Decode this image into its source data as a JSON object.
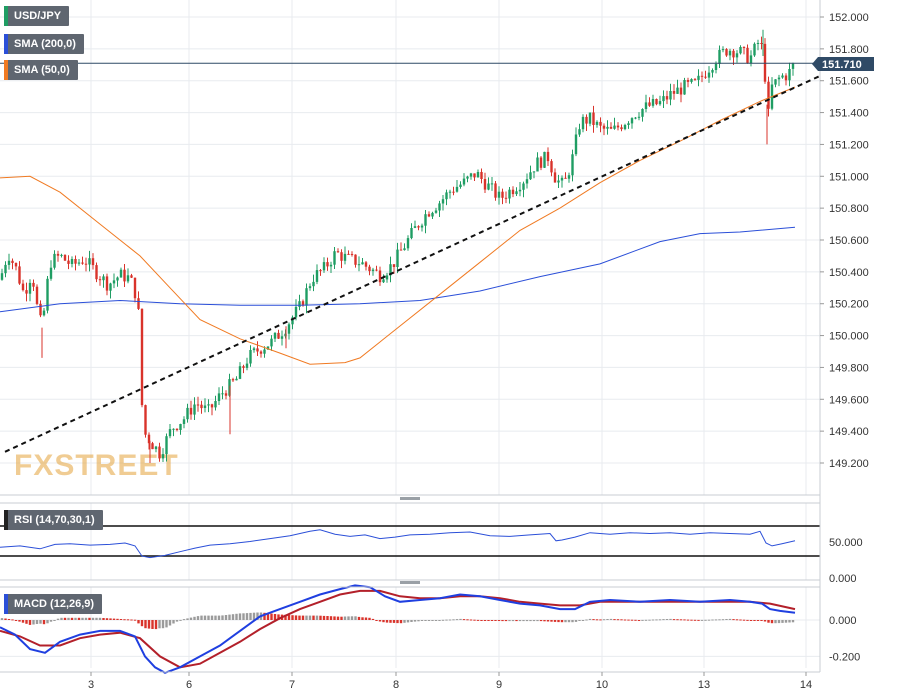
{
  "legend": {
    "symbol": "USD/JPY",
    "sma200": "SMA (200,0)",
    "sma50": "SMA (50,0)",
    "rsi": "RSI (14,70,30,1)",
    "macd": "MACD (12,26,9)"
  },
  "watermark": "FXSTREET",
  "colors": {
    "sma200": "#2b4fd8",
    "sma50": "#f07a22",
    "bull": "#1f9d63",
    "bear": "#d9332b",
    "price_tag": "#2f4a66",
    "macd_line": "#1f3fe0",
    "signal_line": "#b3202a"
  },
  "chart_data": [
    {
      "type": "candlestick",
      "panel": "price",
      "symbol": "USD/JPY",
      "last_price": "151.710",
      "x_ticks": [
        "3",
        "6",
        "7",
        "8",
        "9",
        "10",
        "13",
        "14"
      ],
      "y_ticks": [
        "149.200",
        "149.400",
        "149.600",
        "149.800",
        "150.000",
        "150.200",
        "150.400",
        "150.600",
        "150.800",
        "151.000",
        "151.200",
        "151.400",
        "151.600",
        "151.800",
        "152.000"
      ],
      "ylim": [
        149.05,
        152.07
      ],
      "price_path": [
        [
          0,
          150.35
        ],
        [
          8,
          150.52
        ],
        [
          16,
          150.42
        ],
        [
          24,
          150.26
        ],
        [
          32,
          150.4
        ],
        [
          38,
          150.14
        ],
        [
          42,
          150.05
        ],
        [
          50,
          150.46
        ],
        [
          60,
          150.5
        ],
        [
          72,
          150.44
        ],
        [
          84,
          150.48
        ],
        [
          96,
          150.4
        ],
        [
          108,
          150.32
        ],
        [
          120,
          150.38
        ],
        [
          130,
          150.36
        ],
        [
          138,
          150.22
        ],
        [
          143,
          149.4
        ],
        [
          150,
          149.34
        ],
        [
          160,
          149.26
        ],
        [
          172,
          149.42
        ],
        [
          184,
          149.48
        ],
        [
          196,
          149.58
        ],
        [
          208,
          149.52
        ],
        [
          222,
          149.64
        ],
        [
          236,
          149.72
        ],
        [
          248,
          149.86
        ],
        [
          260,
          149.92
        ],
        [
          272,
          149.96
        ],
        [
          285,
          150.05
        ],
        [
          300,
          150.18
        ],
        [
          312,
          150.36
        ],
        [
          324,
          150.42
        ],
        [
          336,
          150.52
        ],
        [
          348,
          150.48
        ],
        [
          360,
          150.46
        ],
        [
          370,
          150.42
        ],
        [
          380,
          150.38
        ],
        [
          392,
          150.44
        ],
        [
          404,
          150.56
        ],
        [
          416,
          150.68
        ],
        [
          428,
          150.78
        ],
        [
          440,
          150.84
        ],
        [
          452,
          150.92
        ],
        [
          464,
          150.96
        ],
        [
          476,
          151.02
        ],
        [
          488,
          150.94
        ],
        [
          500,
          150.86
        ],
        [
          512,
          150.92
        ],
        [
          524,
          150.98
        ],
        [
          536,
          151.08
        ],
        [
          548,
          151.12
        ],
        [
          556,
          150.98
        ],
        [
          564,
          150.94
        ],
        [
          572,
          151.1
        ],
        [
          580,
          151.34
        ],
        [
          590,
          151.36
        ],
        [
          600,
          151.3
        ],
        [
          612,
          151.28
        ],
        [
          624,
          151.34
        ],
        [
          636,
          151.4
        ],
        [
          648,
          151.44
        ],
        [
          660,
          151.46
        ],
        [
          672,
          151.52
        ],
        [
          684,
          151.56
        ],
        [
          696,
          151.58
        ],
        [
          706,
          151.66
        ],
        [
          716,
          151.74
        ],
        [
          728,
          151.8
        ],
        [
          740,
          151.78
        ],
        [
          750,
          151.74
        ],
        [
          760,
          151.86
        ],
        [
          764,
          151.72
        ],
        [
          768,
          151.36
        ],
        [
          772,
          151.56
        ],
        [
          780,
          151.62
        ],
        [
          788,
          151.64
        ],
        [
          795,
          151.71
        ]
      ],
      "wicks": [
        {
          "x": 42,
          "low": 149.86
        },
        {
          "x": 150,
          "low": 149.2
        },
        {
          "x": 230,
          "low": 149.38
        },
        {
          "x": 286,
          "low": 149.92
        },
        {
          "x": 763,
          "high": 151.92
        },
        {
          "x": 767,
          "low": 151.2
        }
      ],
      "sma200": [
        [
          0,
          150.15
        ],
        [
          60,
          150.2
        ],
        [
          120,
          150.22
        ],
        [
          180,
          150.2
        ],
        [
          240,
          150.19
        ],
        [
          300,
          150.19
        ],
        [
          360,
          150.2
        ],
        [
          420,
          150.22
        ],
        [
          480,
          150.28
        ],
        [
          540,
          150.37
        ],
        [
          600,
          150.45
        ],
        [
          660,
          150.59
        ],
        [
          700,
          150.64
        ],
        [
          740,
          150.65
        ],
        [
          795,
          150.68
        ]
      ],
      "sma50": [
        [
          0,
          150.99
        ],
        [
          30,
          151.0
        ],
        [
          60,
          150.9
        ],
        [
          100,
          150.7
        ],
        [
          140,
          150.5
        ],
        [
          170,
          150.3
        ],
        [
          200,
          150.1
        ],
        [
          240,
          149.98
        ],
        [
          280,
          149.89
        ],
        [
          310,
          149.82
        ],
        [
          345,
          149.83
        ],
        [
          360,
          149.86
        ],
        [
          400,
          150.06
        ],
        [
          440,
          150.26
        ],
        [
          480,
          150.46
        ],
        [
          520,
          150.66
        ],
        [
          560,
          150.8
        ],
        [
          600,
          150.96
        ],
        [
          640,
          151.1
        ],
        [
          680,
          151.22
        ],
        [
          720,
          151.35
        ],
        [
          760,
          151.47
        ],
        [
          795,
          151.56
        ]
      ],
      "trendline": [
        [
          5,
          149.27
        ],
        [
          820,
          151.63
        ]
      ]
    },
    {
      "type": "line",
      "panel": "rsi",
      "title": "RSI (14,70,30,1)",
      "y_ticks": [
        "0.000",
        "50.000"
      ],
      "ylim": [
        0,
        100
      ],
      "levels": [
        70,
        30
      ],
      "values": [
        [
          0,
          42
        ],
        [
          20,
          44
        ],
        [
          40,
          40
        ],
        [
          55,
          46
        ],
        [
          70,
          47
        ],
        [
          90,
          45
        ],
        [
          110,
          46
        ],
        [
          125,
          48
        ],
        [
          135,
          44
        ],
        [
          142,
          30
        ],
        [
          150,
          28
        ],
        [
          165,
          31
        ],
        [
          180,
          36
        ],
        [
          195,
          41
        ],
        [
          210,
          45
        ],
        [
          230,
          47
        ],
        [
          250,
          50
        ],
        [
          270,
          54
        ],
        [
          290,
          58
        ],
        [
          310,
          64
        ],
        [
          320,
          66
        ],
        [
          335,
          60
        ],
        [
          350,
          57
        ],
        [
          365,
          59
        ],
        [
          380,
          54
        ],
        [
          395,
          56
        ],
        [
          410,
          59
        ],
        [
          430,
          60
        ],
        [
          450,
          62
        ],
        [
          470,
          63
        ],
        [
          490,
          58
        ],
        [
          510,
          57
        ],
        [
          530,
          59
        ],
        [
          550,
          61
        ],
        [
          556,
          51
        ],
        [
          562,
          52
        ],
        [
          575,
          56
        ],
        [
          590,
          62
        ],
        [
          610,
          60
        ],
        [
          630,
          62
        ],
        [
          650,
          61
        ],
        [
          670,
          62
        ],
        [
          690,
          60
        ],
        [
          710,
          62
        ],
        [
          730,
          61
        ],
        [
          750,
          60
        ],
        [
          760,
          64
        ],
        [
          766,
          48
        ],
        [
          772,
          44
        ],
        [
          782,
          47
        ],
        [
          795,
          51
        ]
      ]
    },
    {
      "type": "macd",
      "panel": "macd",
      "title": "MACD (12,26,9)",
      "y_ticks": [
        "-0.200",
        "0.000"
      ],
      "ylim": [
        -0.31,
        0.21
      ],
      "macd": [
        [
          0,
          -0.04
        ],
        [
          15,
          -0.08
        ],
        [
          30,
          -0.16
        ],
        [
          45,
          -0.18
        ],
        [
          60,
          -0.12
        ],
        [
          80,
          -0.08
        ],
        [
          100,
          -0.06
        ],
        [
          120,
          -0.06
        ],
        [
          135,
          -0.09
        ],
        [
          145,
          -0.2
        ],
        [
          155,
          -0.26
        ],
        [
          165,
          -0.29
        ],
        [
          180,
          -0.26
        ],
        [
          200,
          -0.2
        ],
        [
          220,
          -0.14
        ],
        [
          240,
          -0.06
        ],
        [
          260,
          0.02
        ],
        [
          280,
          0.06
        ],
        [
          300,
          0.1
        ],
        [
          320,
          0.14
        ],
        [
          340,
          0.17
        ],
        [
          355,
          0.19
        ],
        [
          370,
          0.18
        ],
        [
          385,
          0.13
        ],
        [
          400,
          0.1
        ],
        [
          420,
          0.11
        ],
        [
          440,
          0.12
        ],
        [
          460,
          0.14
        ],
        [
          480,
          0.13
        ],
        [
          500,
          0.11
        ],
        [
          520,
          0.09
        ],
        [
          540,
          0.08
        ],
        [
          560,
          0.06
        ],
        [
          575,
          0.06
        ],
        [
          590,
          0.1
        ],
        [
          610,
          0.11
        ],
        [
          640,
          0.1
        ],
        [
          670,
          0.11
        ],
        [
          700,
          0.1
        ],
        [
          730,
          0.11
        ],
        [
          750,
          0.1
        ],
        [
          762,
          0.09
        ],
        [
          770,
          0.06
        ],
        [
          780,
          0.05
        ],
        [
          795,
          0.04
        ]
      ],
      "signal": [
        [
          0,
          -0.06
        ],
        [
          20,
          -0.09
        ],
        [
          40,
          -0.14
        ],
        [
          60,
          -0.14
        ],
        [
          80,
          -0.1
        ],
        [
          100,
          -0.08
        ],
        [
          120,
          -0.07
        ],
        [
          140,
          -0.1
        ],
        [
          160,
          -0.2
        ],
        [
          180,
          -0.26
        ],
        [
          200,
          -0.24
        ],
        [
          220,
          -0.18
        ],
        [
          240,
          -0.12
        ],
        [
          260,
          -0.05
        ],
        [
          280,
          0.01
        ],
        [
          300,
          0.06
        ],
        [
          320,
          0.1
        ],
        [
          340,
          0.14
        ],
        [
          360,
          0.16
        ],
        [
          380,
          0.16
        ],
        [
          400,
          0.13
        ],
        [
          420,
          0.12
        ],
        [
          440,
          0.12
        ],
        [
          460,
          0.13
        ],
        [
          480,
          0.13
        ],
        [
          500,
          0.12
        ],
        [
          520,
          0.1
        ],
        [
          540,
          0.09
        ],
        [
          560,
          0.08
        ],
        [
          580,
          0.08
        ],
        [
          600,
          0.1
        ],
        [
          640,
          0.1
        ],
        [
          680,
          0.1
        ],
        [
          720,
          0.1
        ],
        [
          750,
          0.1
        ],
        [
          770,
          0.09
        ],
        [
          795,
          0.06
        ]
      ]
    }
  ]
}
